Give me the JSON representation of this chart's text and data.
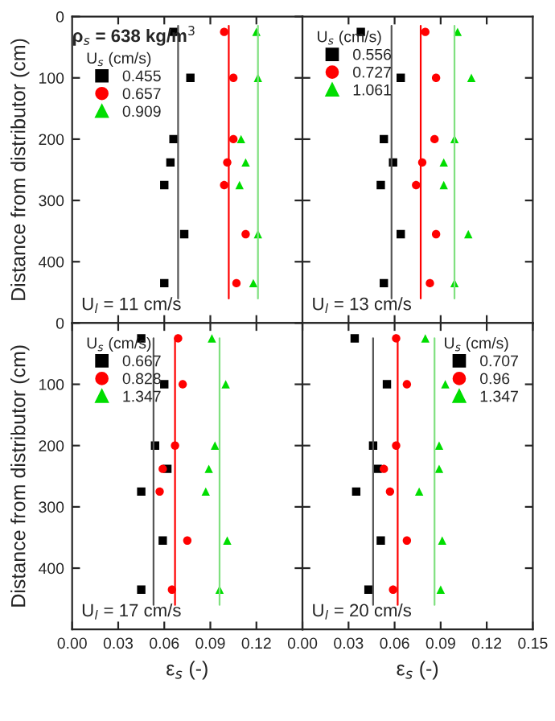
{
  "chart_data": [
    {
      "type": "scatter",
      "ylabel": "Distance from distributor (cm)",
      "legend_title": "U$_{s}$ (cm/s)",
      "legend": "top left",
      "tick_labels": "y",
      "grid": false,
      "annotations": [
        "U$_{l}$ = 11 cm/s",
        "ρ$_{s}$ = 638 kg/m$^{3}$"
      ],
      "xlim": [
        0,
        0.15
      ],
      "xticks": [
        {
          "value": 0.03,
          "label": null
        },
        {
          "value": 0.06,
          "label": null
        },
        {
          "value": 0.09,
          "label": null
        },
        {
          "value": 0.12,
          "label": null
        }
      ],
      "ylim": [
        500,
        0
      ],
      "yticks": [
        0,
        100,
        200,
        300,
        400
      ],
      "series": [
        {
          "name": "0.455",
          "color": "#000000",
          "marker": "square",
          "x": [
            0.066,
            0.077,
            0.066,
            0.064,
            0.06,
            0.073,
            0.06
          ],
          "values": [
            25,
            100,
            200,
            238,
            275,
            355,
            435
          ]
        },
        {
          "name": "0.657",
          "color": "#ff0000",
          "marker": "circle",
          "x": [
            0.099,
            0.105,
            0.105,
            0.101,
            0.099,
            0.113,
            0.107
          ],
          "values": [
            25,
            100,
            200,
            238,
            275,
            355,
            435
          ]
        },
        {
          "name": "0.909",
          "color": "#00dd00",
          "marker": "triangle",
          "x": [
            0.12,
            0.121,
            0.11,
            0.113,
            0.109,
            0.121,
            0.118
          ],
          "values": [
            25,
            100,
            200,
            238,
            275,
            355,
            435
          ]
        },
        {
          "type": "line",
          "color": "#555555",
          "x": [
            0.069,
            0.069
          ],
          "values": [
            15,
            460
          ]
        },
        {
          "type": "line",
          "color": "#ff0000",
          "x": [
            0.102,
            0.102
          ],
          "values": [
            15,
            460
          ]
        },
        {
          "type": "line",
          "color": "#80e080",
          "x": [
            0.121,
            0.121
          ],
          "values": [
            15,
            460
          ]
        }
      ]
    },
    {
      "type": "scatter",
      "legend_title": "U$_{s}$ (cm/s)",
      "legend": "top left",
      "tick_labels": false,
      "grid": false,
      "annotations": [
        "U$_{l}$ = 13 cm/s"
      ],
      "xlim": [
        0,
        0.15
      ],
      "xticks": [
        {
          "value": 0.03,
          "label": null
        },
        {
          "value": 0.06,
          "label": null
        },
        {
          "value": 0.09,
          "label": null
        },
        {
          "value": 0.12,
          "label": null
        }
      ],
      "ylim": [
        500,
        0
      ],
      "yticks": [
        {
          "value": 100,
          "label": null
        },
        {
          "value": 200,
          "label": null
        },
        {
          "value": 300,
          "label": null
        },
        {
          "value": 400,
          "label": null
        }
      ],
      "series": [
        {
          "name": "0.556",
          "color": "#000000",
          "marker": "square",
          "x": [
            0.038,
            0.064,
            0.053,
            0.059,
            0.051,
            0.064,
            0.053
          ],
          "values": [
            25,
            100,
            200,
            238,
            275,
            355,
            435
          ]
        },
        {
          "name": "0.727",
          "color": "#ff0000",
          "marker": "circle",
          "x": [
            0.08,
            0.087,
            0.086,
            0.078,
            0.074,
            0.087,
            0.083
          ],
          "values": [
            25,
            100,
            200,
            238,
            275,
            355,
            435
          ]
        },
        {
          "name": "1.061",
          "color": "#00dd00",
          "marker": "triangle",
          "x": [
            0.101,
            0.11,
            0.099,
            0.092,
            0.092,
            0.108,
            0.099
          ],
          "values": [
            25,
            100,
            200,
            238,
            275,
            355,
            435
          ]
        },
        {
          "type": "line",
          "color": "#555555",
          "x": [
            0.058,
            0.058
          ],
          "values": [
            15,
            460
          ]
        },
        {
          "type": "line",
          "color": "#ff0000",
          "x": [
            0.077,
            0.077
          ],
          "values": [
            15,
            460
          ]
        },
        {
          "type": "line",
          "color": "#80e080",
          "x": [
            0.099,
            0.099
          ],
          "values": [
            15,
            460
          ]
        }
      ]
    },
    {
      "type": "scatter",
      "xlabel": "ε$_{s}$ (-)",
      "ylabel": "Distance from distributor (cm)",
      "legend_title": "U$_{s}$ (cm/s)",
      "legend": "top left",
      "grid": false,
      "annotations": [
        "U$_{l}$ = 17 cm/s"
      ],
      "xlim": [
        0,
        0.15
      ],
      "xticks": [
        {
          "value": 0,
          "label": "0.00"
        },
        0.03,
        0.06,
        0.09,
        0.12
      ],
      "ylim": [
        500,
        0
      ],
      "yticks": [
        0,
        100,
        200,
        300,
        400
      ],
      "series": [
        {
          "name": "0.667",
          "color": "#000000",
          "marker": "square",
          "x": [
            0.045,
            0.06,
            0.054,
            0.062,
            0.045,
            0.059,
            0.045
          ],
          "values": [
            25,
            100,
            200,
            238,
            275,
            355,
            435
          ]
        },
        {
          "name": "0.828",
          "color": "#ff0000",
          "marker": "circle",
          "x": [
            0.069,
            0.072,
            0.067,
            0.059,
            0.057,
            0.075,
            0.065
          ],
          "values": [
            25,
            100,
            200,
            238,
            275,
            355,
            435
          ]
        },
        {
          "name": "1.347",
          "color": "#00dd00",
          "marker": "triangle",
          "x": [
            0.091,
            0.1,
            0.093,
            0.089,
            0.087,
            0.101,
            0.096
          ],
          "values": [
            25,
            100,
            200,
            238,
            275,
            355,
            435
          ]
        },
        {
          "type": "line",
          "color": "#555555",
          "x": [
            0.053,
            0.053
          ],
          "values": [
            25,
            460
          ]
        },
        {
          "type": "line",
          "color": "#ff0000",
          "x": [
            0.067,
            0.067
          ],
          "values": [
            25,
            460
          ]
        },
        {
          "type": "line",
          "color": "#80e080",
          "x": [
            0.096,
            0.096
          ],
          "values": [
            25,
            460
          ]
        }
      ]
    },
    {
      "type": "scatter",
      "xlabel": "ε$_{s}$ (-)",
      "legend_title": "U$_{s}$ (cm/s)",
      "legend": "top right",
      "tick_labels": "x",
      "grid": false,
      "annotations": [
        "U$_{l}$ = 20 cm/s"
      ],
      "xlim": [
        0,
        0.15
      ],
      "xticks": [
        {
          "value": 0,
          "label": "0.00"
        },
        0.03,
        0.06,
        0.09,
        0.12,
        0.15
      ],
      "ylim": [
        500,
        0
      ],
      "yticks": [
        {
          "value": 100,
          "label": null
        },
        {
          "value": 200,
          "label": null
        },
        {
          "value": 300,
          "label": null
        },
        {
          "value": 400,
          "label": null
        }
      ],
      "series": [
        {
          "name": "0.707",
          "color": "#000000",
          "marker": "square",
          "x": [
            0.034,
            0.055,
            0.046,
            0.049,
            0.035,
            0.051,
            0.043
          ],
          "values": [
            25,
            100,
            200,
            238,
            275,
            355,
            435
          ]
        },
        {
          "name": "0.96",
          "color": "#ff0000",
          "marker": "circle",
          "x": [
            0.061,
            0.068,
            0.061,
            0.053,
            0.057,
            0.068,
            0.059
          ],
          "values": [
            25,
            100,
            200,
            238,
            275,
            355,
            435
          ]
        },
        {
          "name": "1.347",
          "color": "#00dd00",
          "marker": "triangle",
          "x": [
            0.08,
            0.093,
            0.089,
            0.089,
            0.076,
            0.091,
            0.09
          ],
          "values": [
            25,
            100,
            200,
            238,
            275,
            355,
            435
          ]
        },
        {
          "type": "line",
          "color": "#555555",
          "x": [
            0.046,
            0.046
          ],
          "values": [
            25,
            460
          ]
        },
        {
          "type": "line",
          "color": "#ff0000",
          "x": [
            0.062,
            0.062
          ],
          "values": [
            25,
            460
          ]
        },
        {
          "type": "line",
          "color": "#80e080",
          "x": [
            0.086,
            0.086
          ],
          "values": [
            25,
            460
          ]
        }
      ]
    }
  ]
}
